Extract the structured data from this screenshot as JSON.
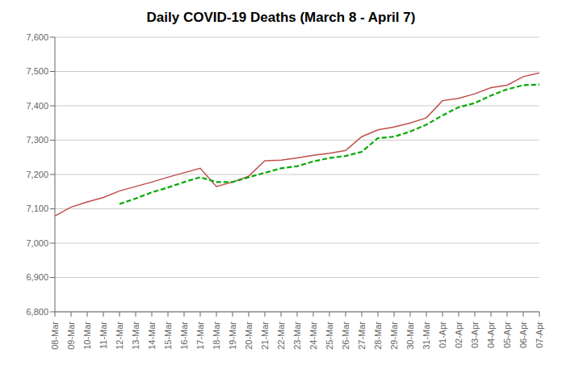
{
  "chart_data": {
    "type": "line",
    "title": "Daily COVID-19 Deaths (March 8 - April 7)",
    "categories": [
      "08-Mar",
      "09-Mar",
      "10-Mar",
      "11-Mar",
      "12-Mar",
      "13-Mar",
      "14-Mar",
      "15-Mar",
      "16-Mar",
      "17-Mar",
      "18-Mar",
      "19-Mar",
      "20-Mar",
      "21-Mar",
      "22-Mar",
      "23-Mar",
      "24-Mar",
      "25-Mar",
      "26-Mar",
      "27-Mar",
      "28-Mar",
      "29-Mar",
      "30-Mar",
      "31-Mar",
      "01-Apr",
      "02-Apr",
      "03-Apr",
      "04-Apr",
      "05-Apr",
      "06-Apr",
      "07-Apr"
    ],
    "series": [
      {
        "color": "#C0504D",
        "line_style": "solid",
        "values": [
          7079,
          7105,
          7120,
          7133,
          7152,
          7165,
          7178,
          7192,
          7205,
          7218,
          7165,
          7178,
          7195,
          7240,
          7242,
          7248,
          7256,
          7262,
          7270,
          7310,
          7330,
          7338,
          7350,
          7365,
          7415,
          7422,
          7435,
          7453,
          7460,
          7485,
          7496
        ]
      },
      {
        "color": "#00AA00",
        "line_style": "dashed",
        "values": [
          null,
          null,
          null,
          null,
          7114,
          7130,
          7148,
          7162,
          7178,
          7192,
          7178,
          7178,
          7192,
          7205,
          7218,
          7224,
          7238,
          7248,
          7254,
          7266,
          7306,
          7310,
          7325,
          7345,
          7372,
          7396,
          7408,
          7430,
          7448,
          7460,
          7462
        ]
      }
    ],
    "ylim": [
      6800,
      7600
    ],
    "yticks": [
      {
        "value": 6800,
        "label": "6,800"
      },
      {
        "value": 6900,
        "label": "6,900"
      },
      {
        "value": 7000,
        "label": "7,000"
      },
      {
        "value": 7100,
        "label": "7,100"
      },
      {
        "value": 7200,
        "label": "7,200"
      },
      {
        "value": 7300,
        "label": "7,300"
      },
      {
        "value": 7400,
        "label": "7,400"
      },
      {
        "value": 7500,
        "label": "7,500"
      },
      {
        "value": 7600,
        "label": "7,600"
      }
    ],
    "grid": true
  }
}
